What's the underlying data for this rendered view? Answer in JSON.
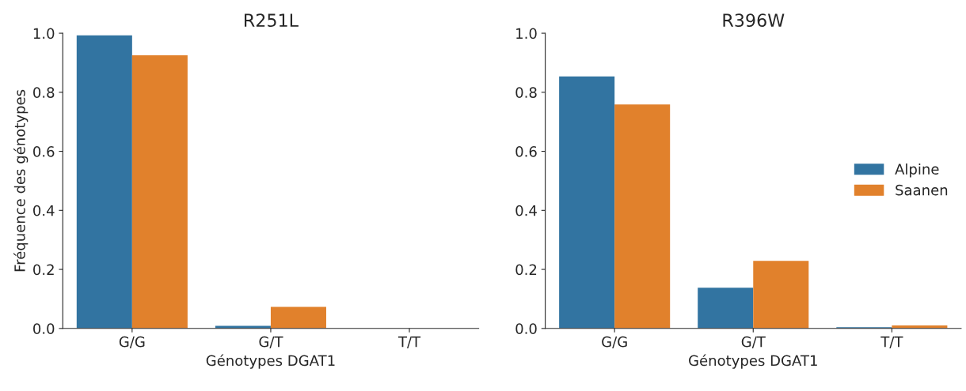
{
  "chart_data": [
    {
      "type": "bar",
      "title": "R251L",
      "xlabel": "Génotypes DGAT1",
      "ylabel": "Fréquence des génotypes",
      "categories": [
        "G/G",
        "G/T",
        "T/T"
      ],
      "series": [
        {
          "color": "#3274a1",
          "values": [
            0.993,
            0.009,
            null
          ]
        },
        {
          "color": "#e1812c",
          "values": [
            0.925,
            0.073,
            null
          ]
        }
      ],
      "ylim": [
        0,
        1.0
      ],
      "yticks": [
        {
          "value": 0,
          "label": "0.0"
        },
        {
          "value": 0.2,
          "label": "0.2"
        },
        {
          "value": 0.4,
          "label": "0.4"
        },
        {
          "value": 0.6,
          "label": "0.6"
        },
        {
          "value": 0.8,
          "label": "0.8"
        },
        {
          "value": 1.0,
          "label": "1.0"
        }
      ],
      "grid": false
    },
    {
      "type": "bar",
      "title": "R396W",
      "xlabel": "Génotypes DGAT1",
      "categories": [
        "G/G",
        "G/T",
        "T/T"
      ],
      "series": [
        {
          "name": "Alpine",
          "color": "#3274a1",
          "values": [
            0.854,
            0.138,
            0.004
          ]
        },
        {
          "name": "Saanen",
          "color": "#e1812c",
          "values": [
            0.759,
            0.229,
            0.01
          ]
        }
      ],
      "ylim": [
        0,
        1.0
      ],
      "yticks": [
        {
          "value": 0,
          "label": "0.0"
        },
        {
          "value": 0.2,
          "label": "0.2"
        },
        {
          "value": 0.4,
          "label": "0.4"
        },
        {
          "value": 0.6,
          "label": "0.6"
        },
        {
          "value": 0.8,
          "label": "0.8"
        },
        {
          "value": 1.0,
          "label": "1.0"
        }
      ],
      "grid": false,
      "legend": "center right"
    }
  ]
}
